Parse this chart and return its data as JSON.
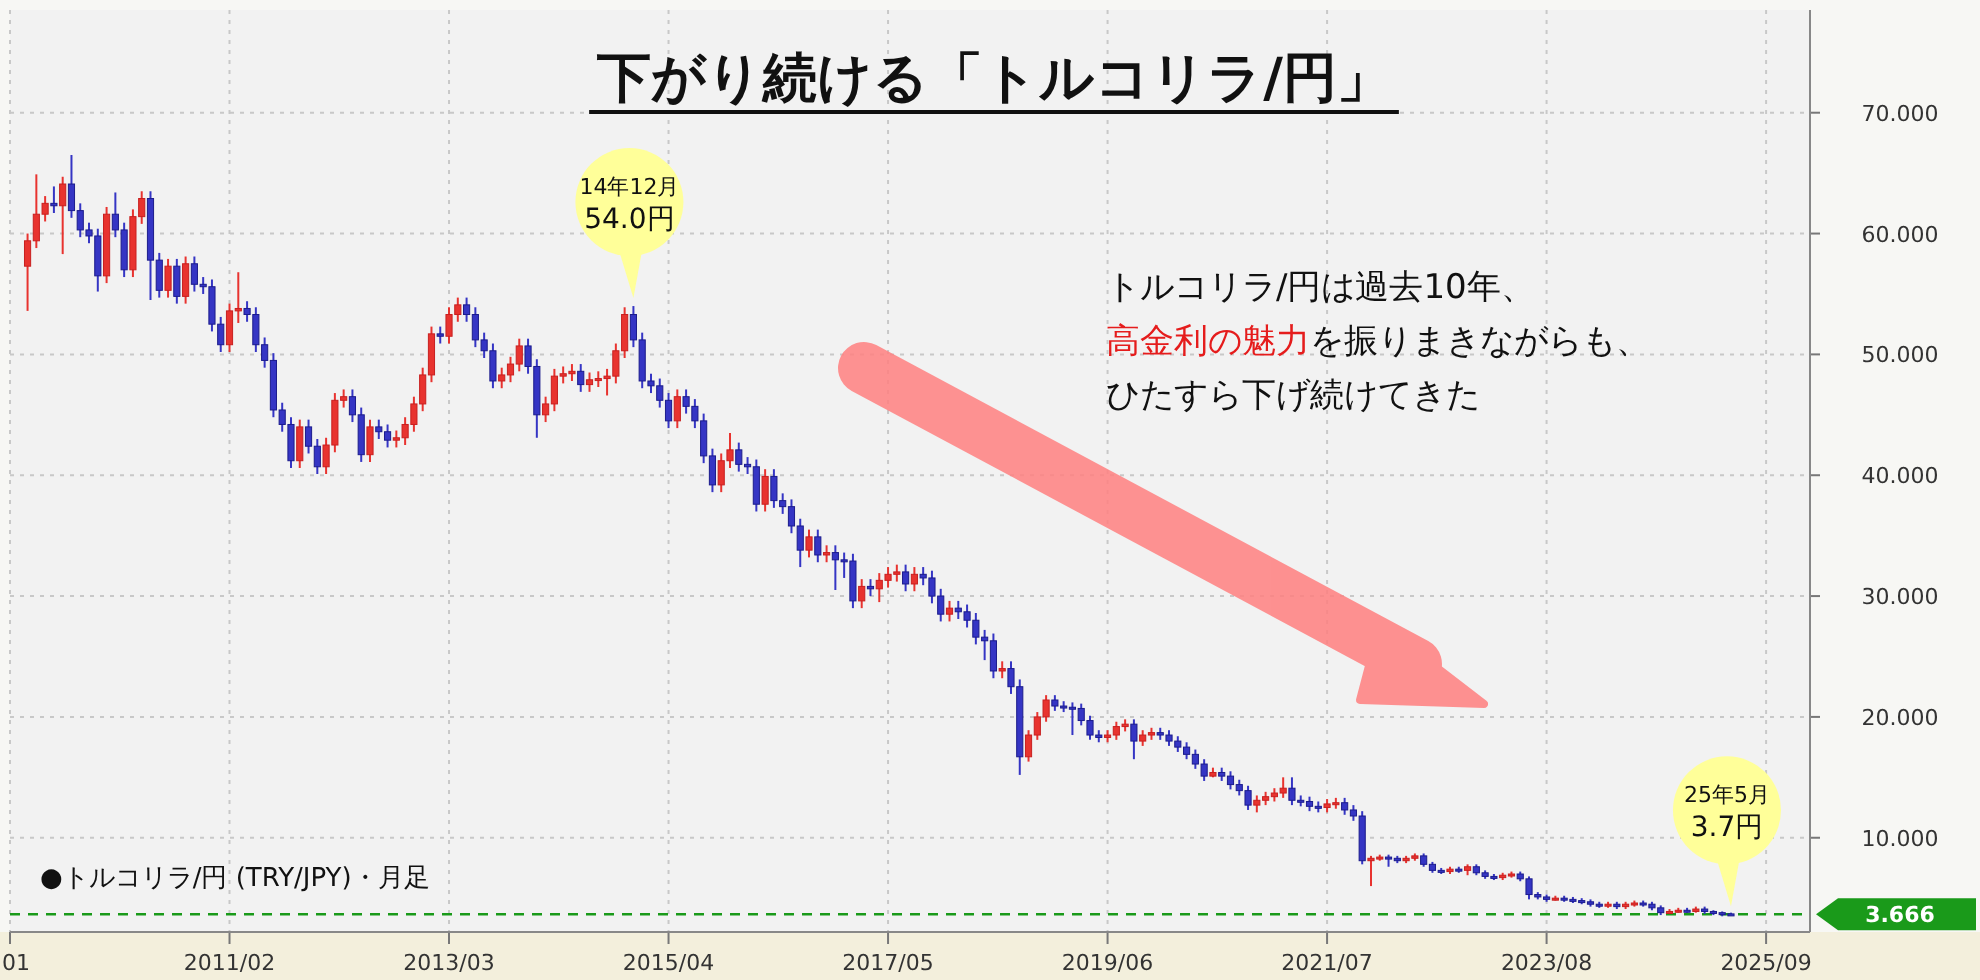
{
  "chart_data": {
    "type": "candlestick",
    "title": "下がり続ける「トルコリラ/円」",
    "x": [
      "2009-03",
      "2009-04",
      "2009-05",
      "2009-06",
      "2009-07",
      "2009-08",
      "2009-09",
      "2009-10",
      "2009-11",
      "2009-12",
      "2010-01",
      "2010-02",
      "2010-03",
      "2010-04",
      "2010-05",
      "2010-06",
      "2010-07",
      "2010-08",
      "2010-09",
      "2010-10",
      "2010-11",
      "2010-12",
      "2011-01",
      "2011-02",
      "2011-03",
      "2011-04",
      "2011-05",
      "2011-06",
      "2011-07",
      "2011-08",
      "2011-09",
      "2011-10",
      "2011-11",
      "2011-12",
      "2012-01",
      "2012-02",
      "2012-03",
      "2012-04",
      "2012-05",
      "2012-06",
      "2012-07",
      "2012-08",
      "2012-09",
      "2012-10",
      "2012-11",
      "2012-12",
      "2013-01",
      "2013-02",
      "2013-03",
      "2013-04",
      "2013-05",
      "2013-06",
      "2013-07",
      "2013-08",
      "2013-09",
      "2013-10",
      "2013-11",
      "2013-12",
      "2014-01",
      "2014-02",
      "2014-03",
      "2014-04",
      "2014-05",
      "2014-06",
      "2014-07",
      "2014-08",
      "2014-09",
      "2014-10",
      "2014-11",
      "2014-12",
      "2015-01",
      "2015-02",
      "2015-03",
      "2015-04",
      "2015-05",
      "2015-06",
      "2015-07",
      "2015-08",
      "2015-09",
      "2015-10",
      "2015-11",
      "2015-12",
      "2016-01",
      "2016-02",
      "2016-03",
      "2016-04",
      "2016-05",
      "2016-06",
      "2016-07",
      "2016-08",
      "2016-09",
      "2016-10",
      "2016-11",
      "2016-12",
      "2017-01",
      "2017-02",
      "2017-03",
      "2017-04",
      "2017-05",
      "2017-06",
      "2017-07",
      "2017-08",
      "2017-09",
      "2017-10",
      "2017-11",
      "2017-12",
      "2018-01",
      "2018-02",
      "2018-03",
      "2018-04",
      "2018-05",
      "2018-06",
      "2018-07",
      "2018-08",
      "2018-09",
      "2018-10",
      "2018-11",
      "2018-12",
      "2019-01",
      "2019-02",
      "2019-03",
      "2019-04",
      "2019-05",
      "2019-06",
      "2019-07",
      "2019-08",
      "2019-09",
      "2019-10",
      "2019-11",
      "2019-12",
      "2020-01",
      "2020-02",
      "2020-03",
      "2020-04",
      "2020-05",
      "2020-06",
      "2020-07",
      "2020-08",
      "2020-09",
      "2020-10",
      "2020-11",
      "2020-12",
      "2021-01",
      "2021-02",
      "2021-03",
      "2021-04",
      "2021-05",
      "2021-06",
      "2021-07",
      "2021-08",
      "2021-09",
      "2021-10",
      "2021-11",
      "2021-12",
      "2022-01",
      "2022-02",
      "2022-03",
      "2022-04",
      "2022-05",
      "2022-06",
      "2022-07",
      "2022-08",
      "2022-09",
      "2022-10",
      "2022-11",
      "2022-12",
      "2023-01",
      "2023-02",
      "2023-03",
      "2023-04",
      "2023-05",
      "2023-06",
      "2023-07",
      "2023-08",
      "2023-09",
      "2023-10",
      "2023-11",
      "2023-12",
      "2024-01",
      "2024-02",
      "2024-03",
      "2024-04",
      "2024-05",
      "2024-06",
      "2024-07",
      "2024-08",
      "2024-09",
      "2024-10",
      "2024-11",
      "2024-12",
      "2025-01",
      "2025-02",
      "2025-03",
      "2025-04",
      "2025-05"
    ],
    "ohlc": [
      [
        57.3,
        60.0,
        53.6,
        59.4
      ],
      [
        59.4,
        64.9,
        58.8,
        61.6
      ],
      [
        61.6,
        63.1,
        61.0,
        62.5
      ],
      [
        62.5,
        63.9,
        61.7,
        62.3
      ],
      [
        62.3,
        64.7,
        58.3,
        64.1
      ],
      [
        64.1,
        66.5,
        61.3,
        61.9
      ],
      [
        61.9,
        62.5,
        59.7,
        60.3
      ],
      [
        60.3,
        60.9,
        59.2,
        59.8
      ],
      [
        59.8,
        60.4,
        55.2,
        56.5
      ],
      [
        56.5,
        62.2,
        55.9,
        61.6
      ],
      [
        61.6,
        63.4,
        59.7,
        60.3
      ],
      [
        60.3,
        60.9,
        56.4,
        57.0
      ],
      [
        57.0,
        62.0,
        56.4,
        61.4
      ],
      [
        61.4,
        63.5,
        60.8,
        62.9
      ],
      [
        62.9,
        63.5,
        54.5,
        57.8
      ],
      [
        57.8,
        58.4,
        54.7,
        55.3
      ],
      [
        55.3,
        57.9,
        54.7,
        57.3
      ],
      [
        57.3,
        57.9,
        54.2,
        54.8
      ],
      [
        54.8,
        58.1,
        54.2,
        57.5
      ],
      [
        57.5,
        58.1,
        55.2,
        55.8
      ],
      [
        55.8,
        56.4,
        55.0,
        55.6
      ],
      [
        55.6,
        56.2,
        51.9,
        52.5
      ],
      [
        52.5,
        53.1,
        50.2,
        50.8
      ],
      [
        50.8,
        54.2,
        50.2,
        53.6
      ],
      [
        53.6,
        56.8,
        52.6,
        53.8
      ],
      [
        53.8,
        54.4,
        52.7,
        53.3
      ],
      [
        53.3,
        53.9,
        50.2,
        50.8
      ],
      [
        50.8,
        51.4,
        48.9,
        49.5
      ],
      [
        49.5,
        50.1,
        44.8,
        45.4
      ],
      [
        45.4,
        46.0,
        43.6,
        44.2
      ],
      [
        44.2,
        44.8,
        40.6,
        41.2
      ],
      [
        41.2,
        44.6,
        40.6,
        44.0
      ],
      [
        44.0,
        44.6,
        41.8,
        42.4
      ],
      [
        42.4,
        43.0,
        40.1,
        40.7
      ],
      [
        40.7,
        43.1,
        40.1,
        42.5
      ],
      [
        42.5,
        46.8,
        41.9,
        46.2
      ],
      [
        46.2,
        47.1,
        45.6,
        46.5
      ],
      [
        46.5,
        47.1,
        44.4,
        45.0
      ],
      [
        45.0,
        45.6,
        41.1,
        41.7
      ],
      [
        41.7,
        44.6,
        41.1,
        44.0
      ],
      [
        44.0,
        44.6,
        43.0,
        43.6
      ],
      [
        43.6,
        44.2,
        42.3,
        42.9
      ],
      [
        42.9,
        43.7,
        42.3,
        43.1
      ],
      [
        43.1,
        44.8,
        42.5,
        44.2
      ],
      [
        44.2,
        46.5,
        43.6,
        45.9
      ],
      [
        45.9,
        48.9,
        45.3,
        48.3
      ],
      [
        48.3,
        52.3,
        47.7,
        51.7
      ],
      [
        51.7,
        52.3,
        50.9,
        51.5
      ],
      [
        51.5,
        53.9,
        50.9,
        53.3
      ],
      [
        53.3,
        54.7,
        52.7,
        54.1
      ],
      [
        54.1,
        54.7,
        52.7,
        53.3
      ],
      [
        53.3,
        53.9,
        50.6,
        51.2
      ],
      [
        51.2,
        51.8,
        49.7,
        50.3
      ],
      [
        50.3,
        50.9,
        47.2,
        47.8
      ],
      [
        47.8,
        48.9,
        47.2,
        48.3
      ],
      [
        48.3,
        49.8,
        47.7,
        49.2
      ],
      [
        49.2,
        51.3,
        48.6,
        50.7
      ],
      [
        50.7,
        51.3,
        48.4,
        49.0
      ],
      [
        49.0,
        49.6,
        43.1,
        45.0
      ],
      [
        45.0,
        46.5,
        44.4,
        45.9
      ],
      [
        45.9,
        48.8,
        45.3,
        48.2
      ],
      [
        48.2,
        49.0,
        47.6,
        48.4
      ],
      [
        48.4,
        49.2,
        47.8,
        48.6
      ],
      [
        48.6,
        49.2,
        46.9,
        47.5
      ],
      [
        47.5,
        48.5,
        46.9,
        47.9
      ],
      [
        47.9,
        48.6,
        47.3,
        48.0
      ],
      [
        48.0,
        48.8,
        46.6,
        48.2
      ],
      [
        48.2,
        50.9,
        47.6,
        50.3
      ],
      [
        50.3,
        53.9,
        49.7,
        53.3
      ],
      [
        53.3,
        54.0,
        50.6,
        51.2
      ],
      [
        51.2,
        51.8,
        47.2,
        47.8
      ],
      [
        47.8,
        48.4,
        46.8,
        47.4
      ],
      [
        47.4,
        48.0,
        45.6,
        46.2
      ],
      [
        46.2,
        46.8,
        43.9,
        44.5
      ],
      [
        44.5,
        47.1,
        43.9,
        46.5
      ],
      [
        46.5,
        47.1,
        45.1,
        45.7
      ],
      [
        45.7,
        46.3,
        43.9,
        44.5
      ],
      [
        44.5,
        45.1,
        41.0,
        41.6
      ],
      [
        41.6,
        42.2,
        38.6,
        39.2
      ],
      [
        39.2,
        41.8,
        38.6,
        41.2
      ],
      [
        41.2,
        43.5,
        40.6,
        42.1
      ],
      [
        42.1,
        42.7,
        40.3,
        40.9
      ],
      [
        40.9,
        41.5,
        40.1,
        40.7
      ],
      [
        40.7,
        41.3,
        37.0,
        37.6
      ],
      [
        37.6,
        40.5,
        37.0,
        39.9
      ],
      [
        39.9,
        40.5,
        37.3,
        37.9
      ],
      [
        37.9,
        38.5,
        36.8,
        37.4
      ],
      [
        37.4,
        38.0,
        35.2,
        35.8
      ],
      [
        35.8,
        36.4,
        32.4,
        33.8
      ],
      [
        33.8,
        35.5,
        33.2,
        34.9
      ],
      [
        34.9,
        35.5,
        32.8,
        33.4
      ],
      [
        33.4,
        34.2,
        32.8,
        33.6
      ],
      [
        33.6,
        34.2,
        30.5,
        33.0
      ],
      [
        33.0,
        33.6,
        31.5,
        32.9
      ],
      [
        32.9,
        33.5,
        29.0,
        29.6
      ],
      [
        29.6,
        31.4,
        29.0,
        30.8
      ],
      [
        30.8,
        31.4,
        30.0,
        30.6
      ],
      [
        30.6,
        31.9,
        29.5,
        31.3
      ],
      [
        31.3,
        32.4,
        30.7,
        31.8
      ],
      [
        31.8,
        32.6,
        31.2,
        32.0
      ],
      [
        32.0,
        32.6,
        30.4,
        31.0
      ],
      [
        31.0,
        32.4,
        30.4,
        31.8
      ],
      [
        31.8,
        32.4,
        30.9,
        31.5
      ],
      [
        31.5,
        32.1,
        29.4,
        30.0
      ],
      [
        30.0,
        30.6,
        27.9,
        28.5
      ],
      [
        28.5,
        29.6,
        27.9,
        29.0
      ],
      [
        29.0,
        29.6,
        28.1,
        28.7
      ],
      [
        28.7,
        29.3,
        27.4,
        28.0
      ],
      [
        28.0,
        28.6,
        26.0,
        26.6
      ],
      [
        26.6,
        27.2,
        24.7,
        26.3
      ],
      [
        26.3,
        26.9,
        23.2,
        23.8
      ],
      [
        23.8,
        24.6,
        23.2,
        24.0
      ],
      [
        24.0,
        24.6,
        21.9,
        22.5
      ],
      [
        22.5,
        23.1,
        15.2,
        16.7
      ],
      [
        16.7,
        18.9,
        16.3,
        18.5
      ],
      [
        18.5,
        20.4,
        18.1,
        20.0
      ],
      [
        20.0,
        21.8,
        19.6,
        21.4
      ],
      [
        21.4,
        21.8,
        20.5,
        20.9
      ],
      [
        20.9,
        21.3,
        20.4,
        20.8
      ],
      [
        20.8,
        21.2,
        18.5,
        20.7
      ],
      [
        20.7,
        21.1,
        19.3,
        19.7
      ],
      [
        19.7,
        20.1,
        18.1,
        18.5
      ],
      [
        18.5,
        18.9,
        17.9,
        18.3
      ],
      [
        18.3,
        18.9,
        17.9,
        18.5
      ],
      [
        18.5,
        19.6,
        18.1,
        19.2
      ],
      [
        19.2,
        19.8,
        18.8,
        19.4
      ],
      [
        19.4,
        19.8,
        16.5,
        18.0
      ],
      [
        18.0,
        18.9,
        17.6,
        18.5
      ],
      [
        18.5,
        19.1,
        18.1,
        18.7
      ],
      [
        18.7,
        19.1,
        18.1,
        18.5
      ],
      [
        18.5,
        18.9,
        17.6,
        18.0
      ],
      [
        18.0,
        18.4,
        17.1,
        17.5
      ],
      [
        17.5,
        17.9,
        16.5,
        16.9
      ],
      [
        16.9,
        17.3,
        15.7,
        16.1
      ],
      [
        16.1,
        16.5,
        14.7,
        15.1
      ],
      [
        15.1,
        15.8,
        15.0,
        15.4
      ],
      [
        15.4,
        15.8,
        14.7,
        15.1
      ],
      [
        15.1,
        15.5,
        14.0,
        14.4
      ],
      [
        14.4,
        14.8,
        13.5,
        13.9
      ],
      [
        13.9,
        14.3,
        12.3,
        12.7
      ],
      [
        12.7,
        13.5,
        12.1,
        13.1
      ],
      [
        13.1,
        13.8,
        12.7,
        13.4
      ],
      [
        13.4,
        14.1,
        13.0,
        13.7
      ],
      [
        13.7,
        15.0,
        13.3,
        14.1
      ],
      [
        14.1,
        15.0,
        12.7,
        13.1
      ],
      [
        13.1,
        13.5,
        12.6,
        13.0
      ],
      [
        13.0,
        13.4,
        12.2,
        12.6
      ],
      [
        12.6,
        13.0,
        12.1,
        12.5
      ],
      [
        12.5,
        13.2,
        12.1,
        12.8
      ],
      [
        12.8,
        13.3,
        12.4,
        12.9
      ],
      [
        12.9,
        13.3,
        11.9,
        12.3
      ],
      [
        12.3,
        12.7,
        11.4,
        11.8
      ],
      [
        11.8,
        12.2,
        7.8,
        8.1
      ],
      [
        8.1,
        8.5,
        6.0,
        8.3
      ],
      [
        8.3,
        8.6,
        8.1,
        8.4
      ],
      [
        8.4,
        8.6,
        7.6,
        8.3
      ],
      [
        8.3,
        8.5,
        7.9,
        8.1
      ],
      [
        8.1,
        8.5,
        7.9,
        8.3
      ],
      [
        8.3,
        8.7,
        8.1,
        8.5
      ],
      [
        8.5,
        8.7,
        7.6,
        7.8
      ],
      [
        7.8,
        8.0,
        7.1,
        7.3
      ],
      [
        7.3,
        7.5,
        7.0,
        7.2
      ],
      [
        7.2,
        7.6,
        7.0,
        7.4
      ],
      [
        7.4,
        7.6,
        7.1,
        7.3
      ],
      [
        7.3,
        7.8,
        6.9,
        7.6
      ],
      [
        7.6,
        7.8,
        6.9,
        7.1
      ],
      [
        7.1,
        7.3,
        6.6,
        6.8
      ],
      [
        6.8,
        7.0,
        6.5,
        6.7
      ],
      [
        6.7,
        7.1,
        6.5,
        6.9
      ],
      [
        6.9,
        7.2,
        6.7,
        7.0
      ],
      [
        7.0,
        7.2,
        6.4,
        6.6
      ],
      [
        6.6,
        6.8,
        4.9,
        5.3
      ],
      [
        5.3,
        5.5,
        4.9,
        5.1
      ],
      [
        5.1,
        5.3,
        4.7,
        4.9
      ],
      [
        4.9,
        5.2,
        4.8,
        5.0
      ],
      [
        5.0,
        5.2,
        4.7,
        4.9
      ],
      [
        4.9,
        5.1,
        4.6,
        4.8
      ],
      [
        4.8,
        5.0,
        4.5,
        4.7
      ],
      [
        4.7,
        4.9,
        4.3,
        4.5
      ],
      [
        4.5,
        4.7,
        4.2,
        4.4
      ],
      [
        4.4,
        4.7,
        4.2,
        4.5
      ],
      [
        4.5,
        4.7,
        4.1,
        4.3
      ],
      [
        4.3,
        4.7,
        4.1,
        4.5
      ],
      [
        4.5,
        4.8,
        4.3,
        4.6
      ],
      [
        4.6,
        4.8,
        4.3,
        4.5
      ],
      [
        4.5,
        4.7,
        4.0,
        4.2
      ],
      [
        4.2,
        4.4,
        3.6,
        3.8
      ],
      [
        3.8,
        4.1,
        3.7,
        3.9
      ],
      [
        3.9,
        4.2,
        3.8,
        4.0
      ],
      [
        4.0,
        4.2,
        3.8,
        3.9
      ],
      [
        3.9,
        4.3,
        3.8,
        4.1
      ],
      [
        4.1,
        4.3,
        3.7,
        3.9
      ],
      [
        3.9,
        4.0,
        3.6,
        3.8
      ],
      [
        3.8,
        3.9,
        3.5,
        3.7
      ],
      [
        3.7,
        3.8,
        3.6,
        3.666
      ]
    ],
    "xlim": [
      "2009-01",
      "2026-02"
    ],
    "xticks": [
      {
        "value": "2009-01",
        "label": "01"
      },
      {
        "value": "2011-02",
        "label": "2011/02"
      },
      {
        "value": "2013-03",
        "label": "2013/03"
      },
      {
        "value": "2015-04",
        "label": "2015/04"
      },
      {
        "value": "2017-05",
        "label": "2017/05"
      },
      {
        "value": "2019-06",
        "label": "2019/06"
      },
      {
        "value": "2021-07",
        "label": "2021/07"
      },
      {
        "value": "2023-08",
        "label": "2023/08"
      },
      {
        "value": "2025-09",
        "label": "2025/09"
      }
    ],
    "ylim": [
      2.2,
      78.5
    ],
    "yticks": [
      {
        "value": 10,
        "label": "10.000"
      },
      {
        "value": 20,
        "label": "20.000"
      },
      {
        "value": 30,
        "label": "30.000"
      },
      {
        "value": 40,
        "label": "40.000"
      },
      {
        "value": 50,
        "label": "50.000"
      },
      {
        "value": 60,
        "label": "60.000"
      },
      {
        "value": 70,
        "label": "70.000"
      }
    ],
    "grid": true,
    "ref_lines": [
      {
        "axis": "y",
        "value": 3.666,
        "label": "3.666",
        "color": "#1a9a1a",
        "line_style": "dashed"
      }
    ],
    "annotations": [
      {
        "text": "14年12月\n54.0円",
        "x": "2014-12",
        "y": 54.0
      },
      {
        "text": "25年5月\n3.7円",
        "x": "2025-05",
        "y": 3.666
      },
      "トルコリラ/円は過去10年、",
      "高金利の魅力",
      "を振りまきながらも、",
      "ひたすら下げ続けてきた",
      "●トルコリラ/円 (TRY/JPY)・月足"
    ]
  }
}
